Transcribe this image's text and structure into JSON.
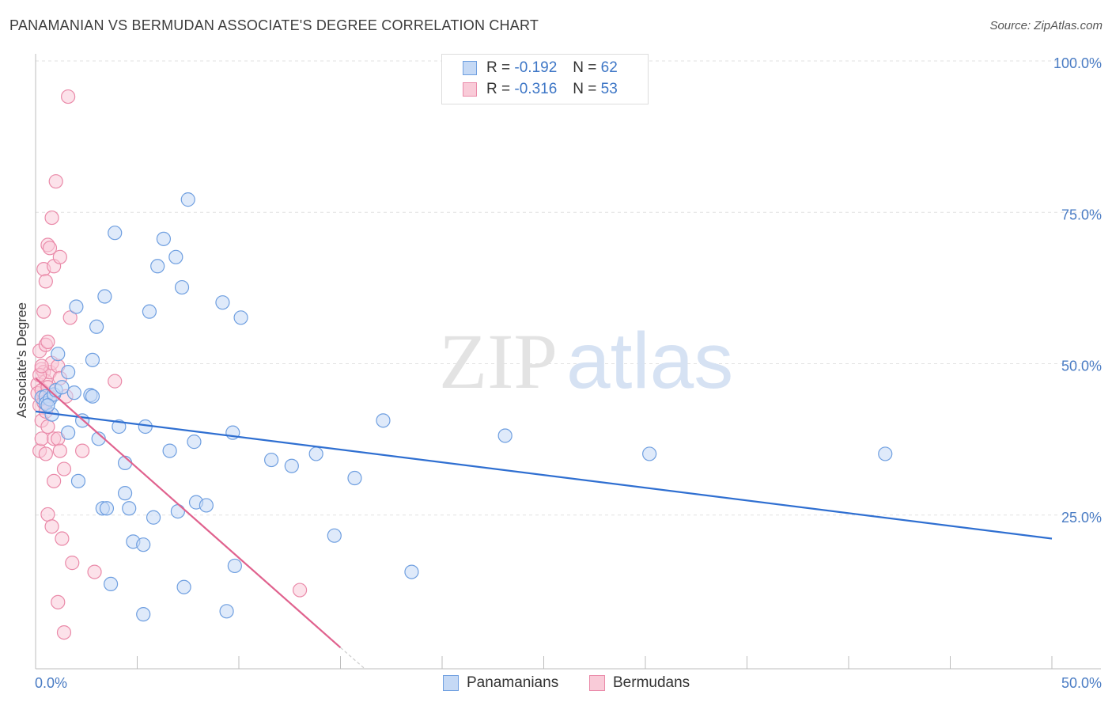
{
  "title": "PANAMANIAN VS BERMUDAN ASSOCIATE'S DEGREE CORRELATION CHART",
  "source": "Source: ZipAtlas.com",
  "watermark": {
    "zip": "ZIP",
    "atlas": "atlas"
  },
  "legend": {
    "rows": [
      {
        "r_label": "R =",
        "r_value": "-0.192",
        "n_label": "N =",
        "n_value": "62"
      },
      {
        "r_label": "R =",
        "r_value": "-0.316",
        "n_label": "N =",
        "n_value": "53"
      }
    ]
  },
  "bottom_legend": {
    "panamanians": "Panamanians",
    "bermudans": "Bermudans"
  },
  "colors": {
    "blue": "#6f9fe0",
    "blue_fill": "#c5d9f5",
    "blue_line": "#2f6fd1",
    "pink": "#ea8aa9",
    "pink_fill": "#f9cbd8",
    "pink_line": "#e0628e",
    "tick": "#4a7cc4"
  },
  "chart_data": {
    "type": "scatter",
    "xlabel": "",
    "ylabel": "Associate's Degree",
    "xlim": [
      0,
      50
    ],
    "ylim": [
      0,
      100
    ],
    "x_tick_labels": [
      "0.0%",
      "50.0%"
    ],
    "y_ticks": [
      25,
      50,
      75,
      100
    ],
    "y_tick_labels": [
      "25.0%",
      "50.0%",
      "75.0%",
      "100.0%"
    ],
    "grid": true,
    "series": [
      {
        "name": "Panamanians",
        "trend": {
          "x": [
            0,
            50
          ],
          "y": [
            42.5,
            21.5
          ]
        },
        "points": [
          [
            0.3,
            44.8
          ],
          [
            0.5,
            45.0
          ],
          [
            0.5,
            43.8
          ],
          [
            0.7,
            44.5
          ],
          [
            0.8,
            42.0
          ],
          [
            0.9,
            45.3
          ],
          [
            1.0,
            46.0
          ],
          [
            1.1,
            52.0
          ],
          [
            1.3,
            46.5
          ],
          [
            1.6,
            49.0
          ],
          [
            1.6,
            39.0
          ],
          [
            1.9,
            45.6
          ],
          [
            2.0,
            59.8
          ],
          [
            2.1,
            31.0
          ],
          [
            2.3,
            41.0
          ],
          [
            2.7,
            45.2
          ],
          [
            2.8,
            45.0
          ],
          [
            2.8,
            51.0
          ],
          [
            3.0,
            56.5
          ],
          [
            3.1,
            38.0
          ],
          [
            3.3,
            26.5
          ],
          [
            3.4,
            61.5
          ],
          [
            3.5,
            26.5
          ],
          [
            3.7,
            14.0
          ],
          [
            3.9,
            72.0
          ],
          [
            4.1,
            40.0
          ],
          [
            4.4,
            34.0
          ],
          [
            4.4,
            29.0
          ],
          [
            4.6,
            26.5
          ],
          [
            4.8,
            21.0
          ],
          [
            5.3,
            20.5
          ],
          [
            5.3,
            9.0
          ],
          [
            5.4,
            40.0
          ],
          [
            5.6,
            59.0
          ],
          [
            5.8,
            25.0
          ],
          [
            6.0,
            66.5
          ],
          [
            6.3,
            71.0
          ],
          [
            6.6,
            36.0
          ],
          [
            6.9,
            68.0
          ],
          [
            7.0,
            26.0
          ],
          [
            7.2,
            63.0
          ],
          [
            7.3,
            13.5
          ],
          [
            7.5,
            77.5
          ],
          [
            7.8,
            37.5
          ],
          [
            7.9,
            27.5
          ],
          [
            8.4,
            27.0
          ],
          [
            9.2,
            60.5
          ],
          [
            9.4,
            9.5
          ],
          [
            9.7,
            39.0
          ],
          [
            9.8,
            17.0
          ],
          [
            10.1,
            58.0
          ],
          [
            11.6,
            34.5
          ],
          [
            12.6,
            33.5
          ],
          [
            13.8,
            35.5
          ],
          [
            14.7,
            22.0
          ],
          [
            15.7,
            31.5
          ],
          [
            17.1,
            41.0
          ],
          [
            18.5,
            16.0
          ],
          [
            23.1,
            38.5
          ],
          [
            30.2,
            35.5
          ],
          [
            41.8,
            35.5
          ],
          [
            0.6,
            43.5
          ]
        ]
      },
      {
        "name": "Bermudans",
        "trend": {
          "x": [
            0,
            15
          ],
          "y": [
            48.0,
            3.5
          ]
        },
        "trend_dashed": {
          "x": [
            15,
            16.2
          ],
          "y": [
            3.5,
            0
          ]
        },
        "points": [
          [
            0.1,
            47.0
          ],
          [
            0.1,
            45.5
          ],
          [
            0.2,
            36.0
          ],
          [
            0.2,
            52.5
          ],
          [
            0.3,
            49.5
          ],
          [
            0.3,
            38.0
          ],
          [
            0.3,
            41.0
          ],
          [
            0.4,
            66.0
          ],
          [
            0.4,
            59.0
          ],
          [
            0.4,
            45.0
          ],
          [
            0.4,
            49.0
          ],
          [
            0.5,
            53.5
          ],
          [
            0.5,
            64.0
          ],
          [
            0.5,
            35.5
          ],
          [
            0.5,
            47.5
          ],
          [
            0.6,
            70.0
          ],
          [
            0.6,
            54.0
          ],
          [
            0.6,
            40.0
          ],
          [
            0.6,
            25.5
          ],
          [
            0.7,
            49.0
          ],
          [
            0.7,
            69.5
          ],
          [
            0.8,
            74.5
          ],
          [
            0.8,
            50.5
          ],
          [
            0.8,
            23.5
          ],
          [
            0.9,
            66.5
          ],
          [
            0.9,
            38.0
          ],
          [
            0.9,
            31.0
          ],
          [
            1.0,
            80.5
          ],
          [
            1.1,
            38.0
          ],
          [
            1.1,
            11.0
          ],
          [
            1.1,
            50.0
          ],
          [
            1.2,
            36.0
          ],
          [
            1.2,
            68.0
          ],
          [
            1.2,
            48.0
          ],
          [
            1.3,
            21.5
          ],
          [
            1.4,
            33.0
          ],
          [
            1.4,
            6.0
          ],
          [
            1.5,
            45.0
          ],
          [
            1.6,
            94.5
          ],
          [
            1.7,
            58.0
          ],
          [
            1.8,
            17.5
          ],
          [
            2.3,
            36.0
          ],
          [
            2.9,
            16.0
          ],
          [
            3.9,
            47.5
          ],
          [
            13.0,
            13.0
          ],
          [
            0.2,
            43.5
          ],
          [
            0.3,
            46.0
          ],
          [
            0.4,
            44.0
          ],
          [
            0.5,
            42.5
          ],
          [
            0.7,
            45.0
          ],
          [
            0.2,
            48.5
          ],
          [
            0.6,
            46.5
          ],
          [
            0.3,
            50.0
          ]
        ]
      }
    ]
  }
}
